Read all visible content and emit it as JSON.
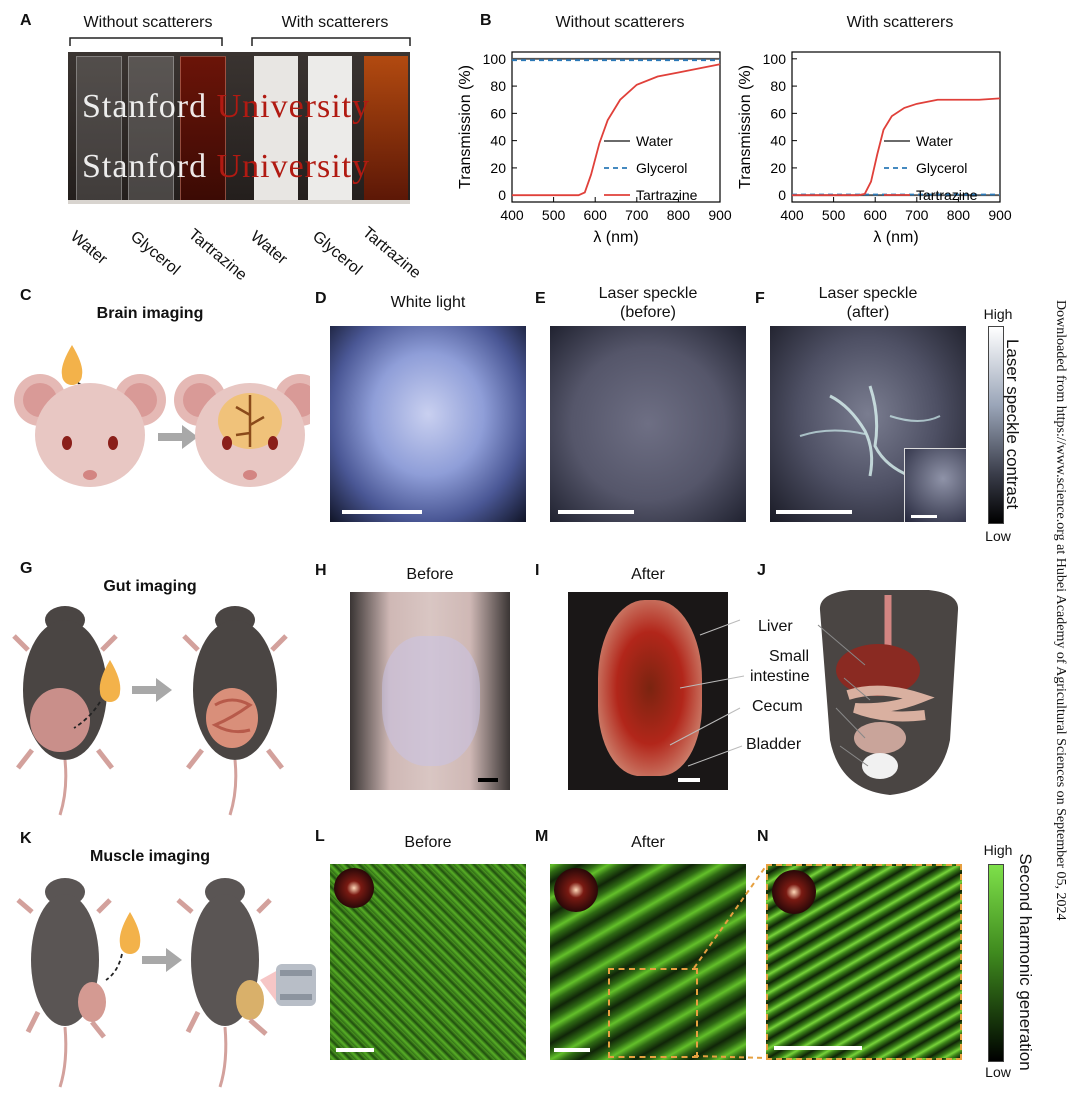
{
  "panelA": {
    "label": "A",
    "bracket_left": "Without scatterers",
    "bracket_right": "With scatterers",
    "cuvette_labels": [
      "Water",
      "Glycerol",
      "Tartrazine",
      "Water",
      "Glycerol",
      "Tartrazine"
    ],
    "photo_text_row1_left": "Stanford",
    "photo_text_row1_right": "University",
    "photo_text_row2_left": "Stanford",
    "photo_text_row2_right": "University"
  },
  "panelB": {
    "label": "B",
    "title_left": "Without scatterers",
    "title_right": "With scatterers"
  },
  "chart_data": [
    {
      "type": "line",
      "title": "Without scatterers",
      "xlabel": "λ (nm)",
      "ylabel": "Transmission (%)",
      "xlim": [
        400,
        900
      ],
      "ylim": [
        -5,
        105
      ],
      "xticks": [
        "400",
        "500",
        "600",
        "700",
        "800",
        "900"
      ],
      "yticks": [
        "0",
        "20",
        "40",
        "60",
        "80",
        "100"
      ],
      "legend_position": "right",
      "series": [
        {
          "name": "Water",
          "color": "#555555",
          "dash": "solid",
          "x": [
            400,
            900
          ],
          "y": [
            100,
            100
          ]
        },
        {
          "name": "Glycerol",
          "color": "#2b79b8",
          "dash": "dashed",
          "x": [
            400,
            900
          ],
          "y": [
            99,
            99
          ]
        },
        {
          "name": "Tartrazine",
          "color": "#e0403a",
          "dash": "solid",
          "x": [
            400,
            560,
            575,
            590,
            610,
            630,
            660,
            700,
            750,
            800,
            850,
            900
          ],
          "y": [
            0,
            0,
            2,
            15,
            38,
            55,
            70,
            81,
            87,
            90,
            93,
            96
          ]
        }
      ]
    },
    {
      "type": "line",
      "title": "With scatterers",
      "xlabel": "λ (nm)",
      "ylabel": "Transmission (%)",
      "xlim": [
        400,
        900
      ],
      "ylim": [
        -5,
        105
      ],
      "xticks": [
        "400",
        "500",
        "600",
        "700",
        "800",
        "900"
      ],
      "yticks": [
        "0",
        "20",
        "40",
        "60",
        "80",
        "100"
      ],
      "legend_position": "right",
      "series": [
        {
          "name": "Water",
          "color": "#555555",
          "dash": "solid",
          "x": [
            400,
            900
          ],
          "y": [
            0,
            0
          ]
        },
        {
          "name": "Glycerol",
          "color": "#2b79b8",
          "dash": "dashed",
          "x": [
            400,
            900
          ],
          "y": [
            0.5,
            0.5
          ]
        },
        {
          "name": "Tartrazine",
          "color": "#e0403a",
          "dash": "solid",
          "x": [
            400,
            560,
            575,
            590,
            605,
            620,
            640,
            670,
            700,
            750,
            800,
            850,
            900
          ],
          "y": [
            0,
            0,
            1,
            10,
            30,
            48,
            58,
            64,
            67,
            70,
            70,
            70,
            71
          ]
        }
      ]
    }
  ],
  "panelC": {
    "label": "C",
    "title": "Brain imaging"
  },
  "panelD": {
    "label": "D",
    "title": "White light"
  },
  "panelE": {
    "label": "E",
    "title_line1": "Laser speckle",
    "title_line2": "(before)"
  },
  "panelF": {
    "label": "F",
    "title_line1": "Laser speckle",
    "title_line2": "(after)"
  },
  "colorbar1": {
    "high": "High",
    "low": "Low",
    "title": "Laser speckle contrast"
  },
  "panelG": {
    "label": "G",
    "title": "Gut imaging"
  },
  "panelH": {
    "label": "H",
    "title": "Before"
  },
  "panelI": {
    "label": "I",
    "title": "After"
  },
  "panelJ": {
    "label": "J",
    "organs": [
      "Liver",
      "Small",
      "intestine",
      "Cecum",
      "Bladder"
    ]
  },
  "panelK": {
    "label": "K",
    "title": "Muscle imaging"
  },
  "panelL": {
    "label": "L",
    "title": "Before"
  },
  "panelM": {
    "label": "M",
    "title": "After"
  },
  "panelN": {
    "label": "N"
  },
  "colorbar2": {
    "high": "High",
    "low": "Low",
    "title": "Second harmonic generation"
  },
  "side_note": "Downloaded from https://www.science.org at Hubei Academy of Agricultural Sciences on September 05, 2024",
  "colors": {
    "tartrazine": "#e0403a",
    "glycerol": "#2b79b8",
    "water": "#555555",
    "shg_green": "#5fbf2a",
    "mouse_pink": "#e8c7c3",
    "mouse_dark": "#4a4543"
  }
}
